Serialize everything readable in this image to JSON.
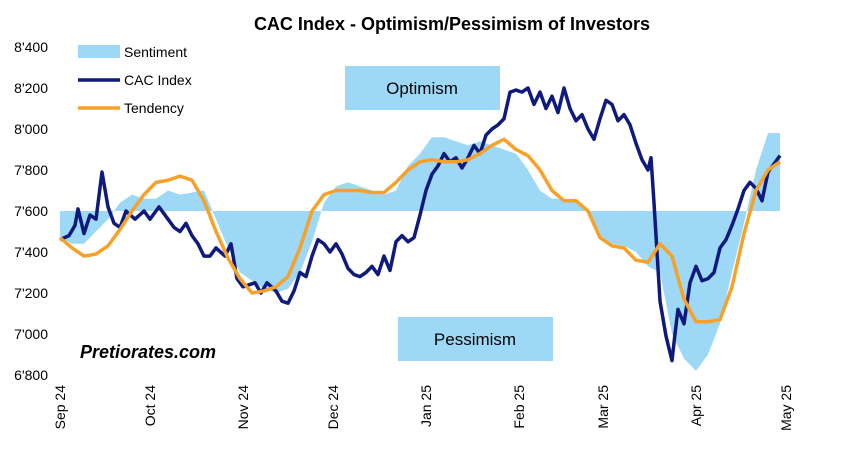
{
  "chart_data": {
    "type": "line",
    "title": "CAC Index - Optimism/Pessimism of Investors",
    "annotations": [
      "Optimism",
      "Pessimism"
    ],
    "watermark": "Pretiorates.com",
    "xlim": [
      0,
      242
    ],
    "xticks": [
      {
        "value": 0,
        "label": "Sep 24"
      },
      {
        "value": 30,
        "label": "Oct 24"
      },
      {
        "value": 61,
        "label": "Nov 24"
      },
      {
        "value": 91,
        "label": "Dec 24"
      },
      {
        "value": 122,
        "label": "Jan 25"
      },
      {
        "value": 153,
        "label": "Feb 25"
      },
      {
        "value": 181,
        "label": "Mar 25"
      },
      {
        "value": 212,
        "label": "Apr 25"
      },
      {
        "value": 242,
        "label": "May 25"
      }
    ],
    "ylim": [
      6800,
      8400
    ],
    "yticks": [
      {
        "value": 6800,
        "label": "6'800"
      },
      {
        "value": 7000,
        "label": "7'000"
      },
      {
        "value": 7200,
        "label": "7'200"
      },
      {
        "value": 7400,
        "label": "7'400"
      },
      {
        "value": 7600,
        "label": "7'600"
      },
      {
        "value": 7800,
        "label": "7'800"
      },
      {
        "value": 8000,
        "label": "8'000"
      },
      {
        "value": 8200,
        "label": "8'200"
      },
      {
        "value": 8400,
        "label": "8'400"
      }
    ],
    "area_baseline": 7600,
    "legend": "top-left",
    "series": [
      {
        "name": "Sentiment",
        "type": "area",
        "color": "#9dd8f6",
        "x": [
          0,
          4,
          8,
          12,
          16,
          20,
          24,
          28,
          32,
          36,
          40,
          44,
          48,
          52,
          56,
          60,
          64,
          68,
          72,
          76,
          80,
          84,
          88,
          92,
          96,
          100,
          104,
          108,
          112,
          116,
          120,
          124,
          128,
          132,
          136,
          140,
          144,
          148,
          152,
          156,
          160,
          164,
          168,
          172,
          176,
          180,
          184,
          188,
          192,
          196,
          200,
          204,
          208,
          212,
          216,
          220,
          224,
          228,
          232,
          236,
          240
        ],
        "values": [
          7470,
          7440,
          7440,
          7500,
          7560,
          7640,
          7680,
          7660,
          7660,
          7700,
          7680,
          7690,
          7700,
          7560,
          7420,
          7300,
          7260,
          7220,
          7200,
          7220,
          7300,
          7450,
          7640,
          7720,
          7740,
          7720,
          7700,
          7680,
          7700,
          7820,
          7880,
          7960,
          7960,
          7940,
          7920,
          7940,
          7920,
          7900,
          7880,
          7800,
          7700,
          7660,
          7660,
          7640,
          7600,
          7470,
          7440,
          7430,
          7400,
          7330,
          7300,
          7000,
          6880,
          6820,
          6900,
          7050,
          7300,
          7540,
          7800,
          7980,
          7980
        ]
      },
      {
        "name": "CAC Index",
        "type": "line",
        "color": "#0f1a7c",
        "x": [
          0,
          3,
          5,
          6,
          8,
          10,
          12,
          14,
          16,
          18,
          20,
          22,
          25,
          28,
          30,
          33,
          36,
          38,
          40,
          42,
          44,
          46,
          48,
          50,
          52,
          55,
          57,
          59,
          61,
          63,
          65,
          67,
          69,
          72,
          74,
          76,
          78,
          80,
          82,
          84,
          86,
          88,
          90,
          92,
          94,
          96,
          98,
          100,
          102,
          104,
          106,
          108,
          110,
          112,
          114,
          116,
          118,
          120,
          122,
          124,
          126,
          128,
          130,
          132,
          134,
          136,
          138,
          140,
          142,
          144,
          146,
          148,
          150,
          152,
          154,
          156,
          158,
          160,
          162,
          164,
          166,
          168,
          170,
          172,
          174,
          176,
          178,
          180,
          182,
          184,
          186,
          188,
          190,
          192,
          194,
          196,
          197,
          198,
          200,
          202,
          204,
          205,
          206,
          208,
          210,
          212,
          214,
          216,
          218,
          220,
          222,
          224,
          226,
          228,
          230,
          232,
          234,
          236,
          238,
          240
        ],
        "values": [
          7460,
          7480,
          7530,
          7610,
          7490,
          7580,
          7560,
          7790,
          7620,
          7540,
          7520,
          7600,
          7560,
          7600,
          7560,
          7620,
          7560,
          7520,
          7500,
          7540,
          7480,
          7440,
          7380,
          7380,
          7420,
          7380,
          7440,
          7270,
          7230,
          7240,
          7250,
          7200,
          7250,
          7210,
          7160,
          7150,
          7210,
          7300,
          7280,
          7380,
          7460,
          7440,
          7400,
          7440,
          7390,
          7320,
          7290,
          7280,
          7300,
          7330,
          7290,
          7380,
          7310,
          7450,
          7480,
          7450,
          7470,
          7580,
          7700,
          7780,
          7820,
          7880,
          7840,
          7860,
          7810,
          7860,
          7920,
          7880,
          7970,
          8000,
          8020,
          8050,
          8180,
          8190,
          8180,
          8200,
          8120,
          8180,
          8100,
          8160,
          8080,
          8200,
          8100,
          8040,
          8070,
          8000,
          7950,
          8050,
          8140,
          8120,
          8040,
          8070,
          8020,
          7930,
          7850,
          7800,
          7860,
          7640,
          7160,
          6990,
          6870,
          7000,
          7120,
          7050,
          7250,
          7330,
          7260,
          7270,
          7300,
          7420,
          7460,
          7530,
          7610,
          7700,
          7740,
          7710,
          7650,
          7790,
          7830,
          7870
        ]
      },
      {
        "name": "Tendency",
        "type": "line",
        "color": "#f7a128",
        "x": [
          0,
          4,
          8,
          12,
          16,
          20,
          24,
          28,
          32,
          36,
          40,
          44,
          48,
          52,
          56,
          60,
          64,
          68,
          72,
          76,
          80,
          84,
          88,
          92,
          96,
          100,
          104,
          108,
          112,
          116,
          120,
          124,
          128,
          132,
          136,
          140,
          144,
          148,
          152,
          156,
          160,
          164,
          168,
          172,
          176,
          180,
          184,
          188,
          192,
          196,
          200,
          204,
          208,
          212,
          216,
          220,
          224,
          228,
          232,
          236,
          240
        ],
        "values": [
          7470,
          7420,
          7380,
          7390,
          7430,
          7510,
          7600,
          7680,
          7740,
          7750,
          7770,
          7750,
          7650,
          7500,
          7370,
          7270,
          7200,
          7210,
          7230,
          7280,
          7420,
          7600,
          7680,
          7700,
          7700,
          7700,
          7690,
          7690,
          7740,
          7800,
          7840,
          7850,
          7840,
          7840,
          7850,
          7880,
          7920,
          7950,
          7900,
          7870,
          7800,
          7700,
          7650,
          7650,
          7600,
          7470,
          7430,
          7420,
          7360,
          7350,
          7440,
          7380,
          7170,
          7060,
          7060,
          7070,
          7230,
          7490,
          7700,
          7800,
          7840
        ]
      }
    ]
  }
}
